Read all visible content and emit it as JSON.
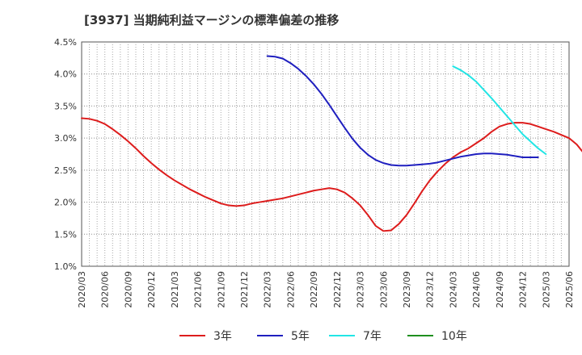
{
  "chart_data": {
    "type": "line",
    "title": "[3937]  当期純利益マージンの標準偏差の推移",
    "xlabel": "",
    "ylabel": "",
    "ylim": [
      1.0,
      4.5
    ],
    "y_ticks": [
      "1.0%",
      "1.5%",
      "2.0%",
      "2.5%",
      "3.0%",
      "3.5%",
      "4.0%",
      "4.5%"
    ],
    "x_ticks": [
      "2020/03",
      "2020/06",
      "2020/09",
      "2020/12",
      "2021/03",
      "2021/06",
      "2021/09",
      "2021/12",
      "2022/03",
      "2022/06",
      "2022/09",
      "2022/12",
      "2023/03",
      "2023/06",
      "2023/09",
      "2023/12",
      "2024/03",
      "2024/06",
      "2024/09",
      "2024/12",
      "2025/03",
      "2025/06"
    ],
    "grid": true,
    "legend_position": "bottom",
    "series": [
      {
        "name": "3年",
        "color": "#dd1c1c",
        "points": [
          [
            "2020/03",
            3.31
          ],
          [
            "2020/04",
            3.3
          ],
          [
            "2020/05",
            3.27
          ],
          [
            "2020/06",
            3.22
          ],
          [
            "2020/07",
            3.14
          ],
          [
            "2020/08",
            3.05
          ],
          [
            "2020/09",
            2.95
          ],
          [
            "2020/10",
            2.84
          ],
          [
            "2020/11",
            2.72
          ],
          [
            "2020/12",
            2.61
          ],
          [
            "2021/01",
            2.51
          ],
          [
            "2021/02",
            2.42
          ],
          [
            "2021/03",
            2.34
          ],
          [
            "2021/04",
            2.27
          ],
          [
            "2021/05",
            2.2
          ],
          [
            "2021/06",
            2.14
          ],
          [
            "2021/07",
            2.08
          ],
          [
            "2021/08",
            2.03
          ],
          [
            "2021/09",
            1.98
          ],
          [
            "2021/10",
            1.95
          ],
          [
            "2021/11",
            1.94
          ],
          [
            "2021/12",
            1.95
          ],
          [
            "2022/01",
            1.98
          ],
          [
            "2022/02",
            2.0
          ],
          [
            "2022/03",
            2.02
          ],
          [
            "2022/04",
            2.04
          ],
          [
            "2022/05",
            2.06
          ],
          [
            "2022/06",
            2.09
          ],
          [
            "2022/07",
            2.12
          ],
          [
            "2022/08",
            2.15
          ],
          [
            "2022/09",
            2.18
          ],
          [
            "2022/10",
            2.2
          ],
          [
            "2022/11",
            2.22
          ],
          [
            "2022/12",
            2.2
          ],
          [
            "2023/01",
            2.15
          ],
          [
            "2023/02",
            2.06
          ],
          [
            "2023/03",
            1.95
          ],
          [
            "2023/04",
            1.8
          ],
          [
            "2023/05",
            1.63
          ],
          [
            "2023/06",
            1.55
          ],
          [
            "2023/07",
            1.56
          ],
          [
            "2023/08",
            1.66
          ],
          [
            "2023/09",
            1.8
          ],
          [
            "2023/10",
            1.98
          ],
          [
            "2023/11",
            2.17
          ],
          [
            "2023/12",
            2.34
          ],
          [
            "2024/01",
            2.48
          ],
          [
            "2024/02",
            2.6
          ],
          [
            "2024/03",
            2.7
          ],
          [
            "2024/04",
            2.78
          ],
          [
            "2024/05",
            2.84
          ],
          [
            "2024/06",
            2.92
          ],
          [
            "2024/07",
            3.0
          ],
          [
            "2024/08",
            3.1
          ],
          [
            "2024/09",
            3.18
          ],
          [
            "2024/10",
            3.22
          ],
          [
            "2024/11",
            3.24
          ],
          [
            "2024/12",
            3.24
          ],
          [
            "2025/01",
            3.22
          ],
          [
            "2025/02",
            3.18
          ],
          [
            "2025/03",
            3.14
          ],
          [
            "2025/04",
            3.1
          ],
          [
            "2025/05",
            3.05
          ],
          [
            "2025/06",
            3.0
          ],
          [
            "2025/07",
            2.9
          ],
          [
            "2025/08",
            2.75
          ]
        ]
      },
      {
        "name": "5年",
        "color": "#1f1fbf",
        "points": [
          [
            "2022/03",
            4.28
          ],
          [
            "2022/04",
            4.27
          ],
          [
            "2022/05",
            4.24
          ],
          [
            "2022/06",
            4.17
          ],
          [
            "2022/07",
            4.08
          ],
          [
            "2022/08",
            3.97
          ],
          [
            "2022/09",
            3.84
          ],
          [
            "2022/10",
            3.69
          ],
          [
            "2022/11",
            3.52
          ],
          [
            "2022/12",
            3.34
          ],
          [
            "2023/01",
            3.16
          ],
          [
            "2023/02",
            2.99
          ],
          [
            "2023/03",
            2.85
          ],
          [
            "2023/04",
            2.74
          ],
          [
            "2023/05",
            2.66
          ],
          [
            "2023/06",
            2.61
          ],
          [
            "2023/07",
            2.58
          ],
          [
            "2023/08",
            2.57
          ],
          [
            "2023/09",
            2.57
          ],
          [
            "2023/10",
            2.58
          ],
          [
            "2023/11",
            2.59
          ],
          [
            "2023/12",
            2.6
          ],
          [
            "2024/01",
            2.62
          ],
          [
            "2024/02",
            2.65
          ],
          [
            "2024/03",
            2.68
          ],
          [
            "2024/04",
            2.71
          ],
          [
            "2024/05",
            2.73
          ],
          [
            "2024/06",
            2.75
          ],
          [
            "2024/07",
            2.76
          ],
          [
            "2024/08",
            2.76
          ],
          [
            "2024/09",
            2.75
          ],
          [
            "2024/10",
            2.74
          ],
          [
            "2024/11",
            2.72
          ],
          [
            "2024/12",
            2.7
          ],
          [
            "2025/01",
            2.7
          ],
          [
            "2025/02",
            2.7
          ]
        ]
      },
      {
        "name": "7年",
        "color": "#22e5e5",
        "points": [
          [
            "2024/03",
            4.12
          ],
          [
            "2024/04",
            4.06
          ],
          [
            "2024/05",
            3.98
          ],
          [
            "2024/06",
            3.88
          ],
          [
            "2024/07",
            3.75
          ],
          [
            "2024/08",
            3.62
          ],
          [
            "2024/09",
            3.48
          ],
          [
            "2024/10",
            3.34
          ],
          [
            "2024/11",
            3.2
          ],
          [
            "2024/12",
            3.06
          ],
          [
            "2025/01",
            2.95
          ],
          [
            "2025/02",
            2.84
          ],
          [
            "2025/03",
            2.75
          ]
        ]
      },
      {
        "name": "10年",
        "color": "#1f8f1f",
        "points": []
      }
    ]
  }
}
